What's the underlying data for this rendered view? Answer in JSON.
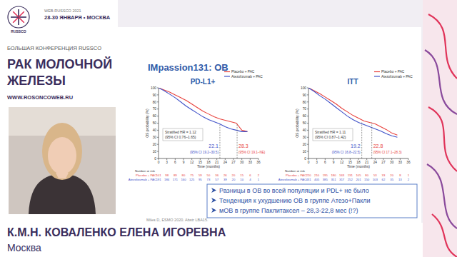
{
  "header": {
    "badge": "RUSSCO",
    "event_lines": [
      "WEB-RUSSCO 2021",
      "28-30 ЯНВАРЯ • МОСКВА"
    ],
    "conference": "БОЛЬШАЯ КОНФЕРЕНЦИЯ RUSSCO",
    "title_lines": [
      "РАК МОЛОЧНОЙ",
      "ЖЕЛЕЗЫ"
    ],
    "url": "WWW.ROSONCOWEB.RU"
  },
  "speaker": {
    "name": "К.М.Н. КОВАЛЕНКО ЕЛЕНА ИГОРЕВНА",
    "city": "Москва"
  },
  "slide": {
    "title": "IMpassion131: ОВ",
    "bullets": [
      "Разницы в ОВ во всей популяции и PDL+ не было",
      "Тенденция к ухудшению ОВ в группе Атезо+Пакли",
      "мОВ в группе Паклитаксел – 28,3-22,8 мес (!?)"
    ],
    "source": "Miles D, ESMO 2020. Abstr LBA15."
  },
  "chart_data": [
    {
      "type": "line",
      "title": "PD-L1+",
      "x_label": "Time (months)",
      "y_label": "OS probability (%)",
      "x": [
        0,
        2,
        4,
        6,
        8,
        10,
        12,
        14,
        16,
        18,
        20,
        22,
        24,
        26,
        28,
        30,
        32
      ],
      "series": [
        {
          "name": "Placebo + PAC",
          "color": "#e8413c",
          "values": [
            100,
            97,
            94,
            90,
            86,
            82,
            77,
            72,
            67,
            63,
            59,
            56,
            54,
            52,
            50,
            40,
            38
          ],
          "median": 28.3,
          "median_ci": "(95% CI 19.1–NE)",
          "at_risk": [
            101,
            98,
            89,
            80,
            75,
            59,
            50,
            36,
            26,
            20,
            15,
            6,
            2
          ]
        },
        {
          "name": "Atezolizumab + PAC",
          "color": "#3f51c8",
          "values": [
            100,
            96,
            91,
            86,
            80,
            74,
            69,
            64,
            59,
            55,
            52,
            49,
            45,
            42,
            40,
            38,
            38
          ],
          "median": 22.1,
          "median_ci": "(95% CI 19.2–30.5)",
          "at_risk": [
            191,
            184,
            171,
            160,
            125,
            95,
            73,
            57,
            39,
            20,
            10,
            4,
            1
          ]
        }
      ],
      "xlim": [
        0,
        36
      ],
      "xticks": [
        0,
        3,
        6,
        9,
        12,
        15,
        18,
        21,
        24,
        27,
        30,
        33,
        36
      ],
      "ylim": [
        0,
        100
      ],
      "yticks": [
        0,
        10,
        20,
        30,
        40,
        50,
        60,
        70,
        80,
        90,
        100
      ],
      "grid": false,
      "legend": "upper right",
      "annotations": [
        "Stratified HR = 1.12",
        "(95% CI 0.76–1.65)"
      ],
      "risk_title": "Number at risk"
    },
    {
      "type": "line",
      "title": "ITT",
      "x_label": "Time (months)",
      "y_label": "OS probability (%)",
      "x": [
        0,
        2,
        4,
        6,
        8,
        10,
        12,
        14,
        16,
        18,
        20,
        22,
        24,
        26,
        28,
        30,
        32
      ],
      "series": [
        {
          "name": "Placebo + PAC",
          "color": "#e8413c",
          "values": [
            100,
            96,
            92,
            87,
            82,
            77,
            71,
            66,
            61,
            57,
            53,
            51,
            49,
            45,
            41,
            36,
            33
          ],
          "median": 22.8,
          "median_ci": "(95% CI 17.1–28.3)",
          "at_risk": [
            220,
            210,
            195,
            180,
            163,
            131,
            105,
            80,
            53,
            33,
            20,
            8,
            1
          ]
        },
        {
          "name": "Atezolizumab + PAC",
          "color": "#3f51c8",
          "values": [
            100,
            95,
            89,
            84,
            78,
            72,
            66,
            60,
            55,
            51,
            48,
            45,
            42,
            39,
            35,
            32,
            30
          ],
          "median": 19.2,
          "median_ci": "(95% CI 16.8–22.5)",
          "at_risk": [
            431,
            405,
            385,
            351,
            317,
            252,
            201,
            150,
            103,
            62,
            35,
            13,
            2
          ]
        }
      ],
      "xlim": [
        0,
        36
      ],
      "xticks": [
        0,
        3,
        6,
        9,
        12,
        15,
        18,
        21,
        24,
        27,
        30,
        33,
        36
      ],
      "ylim": [
        0,
        100
      ],
      "yticks": [
        0,
        10,
        20,
        30,
        40,
        50,
        60,
        70,
        80,
        90,
        100
      ],
      "grid": false,
      "legend": "upper right",
      "annotations": [
        "Stratified HR = 1.11",
        "(95% CI 0.87–1.42)"
      ],
      "risk_title": "Number at risk"
    }
  ]
}
